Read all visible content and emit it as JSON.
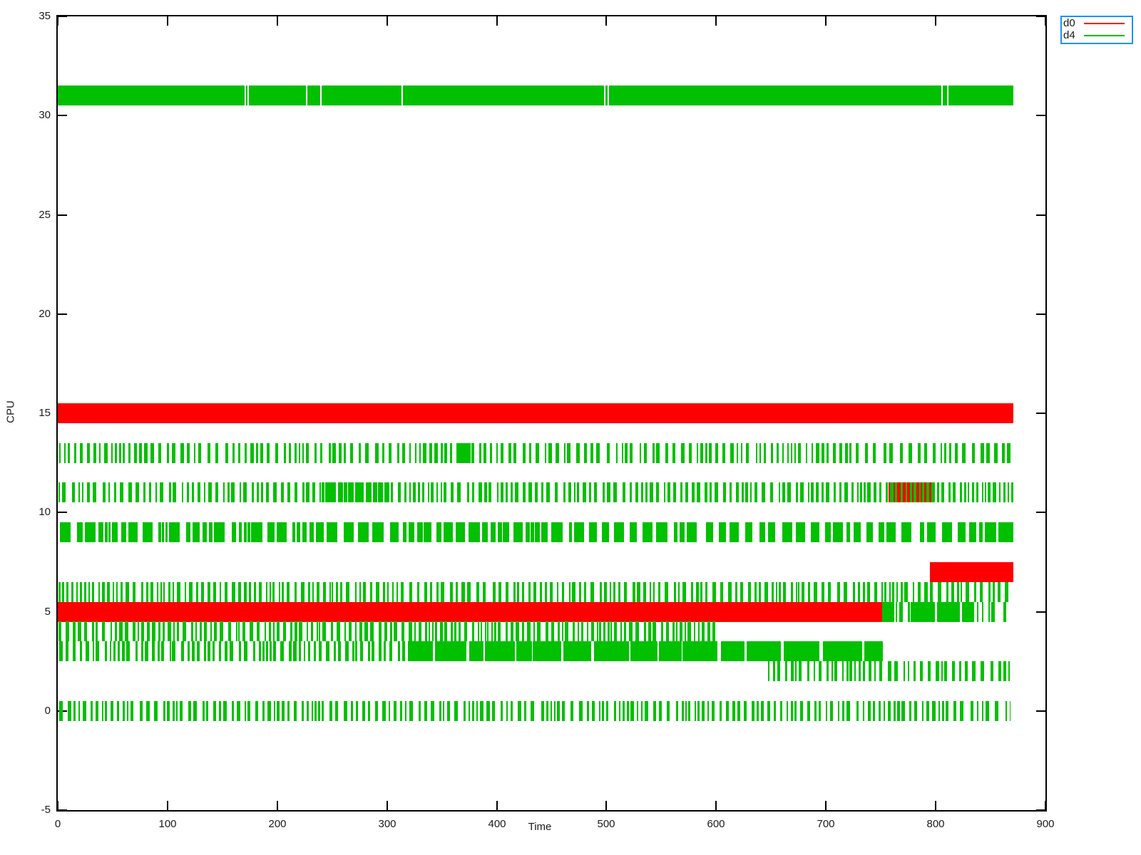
{
  "axes": {
    "x": {
      "label": "Time",
      "min": 0,
      "max": 900
    },
    "y": {
      "label": "CPU",
      "min": -5,
      "max": 35
    }
  },
  "legend": {
    "border_color": "#1e90ff",
    "entries": [
      {
        "label": "d0",
        "color": "#ff0000"
      },
      {
        "label": "d4",
        "color": "#00c000"
      }
    ]
  },
  "chart_data": {
    "type": "bar",
    "subtype": "interval-timeline-gantt",
    "title": "",
    "xlabel": "Time",
    "ylabel": "CPU",
    "xlim": [
      0,
      900
    ],
    "ylim": [
      -5,
      35
    ],
    "x_ticks": [
      0,
      100,
      200,
      300,
      400,
      500,
      600,
      700,
      800,
      900
    ],
    "y_ticks": [
      -5,
      0,
      5,
      10,
      15,
      20,
      25,
      30,
      35
    ],
    "grid": false,
    "legend_position": "outside-top-right",
    "series_colors": {
      "d0": "#ff0000",
      "d4": "#00c000"
    },
    "bar_height_units": 1,
    "time_end": 871,
    "rows": [
      {
        "cpu": 31,
        "segments": [
          {
            "start": 0,
            "end": 871,
            "style": "solid",
            "series": "d4"
          }
        ],
        "gaps": [
          170,
          173,
          226,
          239,
          313,
          498,
          501,
          805,
          810
        ]
      },
      {
        "cpu": 15,
        "segments": [
          {
            "start": 0,
            "end": 871,
            "style": "solid",
            "series": "d0"
          }
        ]
      },
      {
        "cpu": 13,
        "segments": [
          {
            "start": 0,
            "end": 364,
            "style": "stripes",
            "series": "d4",
            "density": 0.4
          },
          {
            "start": 364,
            "end": 376,
            "style": "solid",
            "series": "d4"
          },
          {
            "start": 376,
            "end": 870,
            "style": "stripes",
            "series": "d4",
            "density": 0.4
          }
        ]
      },
      {
        "cpu": 11,
        "overlays": [
          {
            "start": 757,
            "end": 796,
            "series": "d0"
          }
        ],
        "segments": [
          {
            "start": 0,
            "end": 240,
            "style": "stripes",
            "series": "d4",
            "density": 0.42
          },
          {
            "start": 240,
            "end": 302,
            "style": "dense",
            "series": "d4",
            "density": 0.8
          },
          {
            "start": 302,
            "end": 757,
            "style": "stripes",
            "series": "d4",
            "density": 0.44
          },
          {
            "start": 757,
            "end": 871,
            "style": "stripes",
            "series": "d4",
            "density": 0.46
          }
        ]
      },
      {
        "cpu": 9,
        "segments": [
          {
            "start": 0,
            "end": 430,
            "style": "dense",
            "series": "d4",
            "density": 0.7
          },
          {
            "start": 430,
            "end": 660,
            "style": "dense",
            "series": "d4",
            "density": 0.58
          },
          {
            "start": 660,
            "end": 820,
            "style": "dense",
            "series": "d4",
            "density": 0.62
          },
          {
            "start": 820,
            "end": 843,
            "style": "dense",
            "series": "d4",
            "density": 0.75
          },
          {
            "start": 845,
            "end": 855,
            "style": "solid",
            "series": "d4"
          },
          {
            "start": 857,
            "end": 871,
            "style": "solid",
            "series": "d4"
          }
        ]
      },
      {
        "cpu": 7,
        "segments": [
          {
            "start": 795,
            "end": 871,
            "style": "solid",
            "series": "d0"
          }
        ]
      },
      {
        "cpu": 6,
        "segments": [
          {
            "start": 0,
            "end": 870,
            "style": "stripes",
            "series": "d4",
            "density": 0.42
          }
        ]
      },
      {
        "cpu": 5,
        "segments": [
          {
            "start": 0,
            "end": 751,
            "style": "solid",
            "series": "d0"
          },
          {
            "start": 751,
            "end": 762,
            "style": "solid",
            "series": "d4"
          },
          {
            "start": 763,
            "end": 777,
            "style": "stripes",
            "series": "d4",
            "density": 0.45
          },
          {
            "start": 777,
            "end": 799,
            "style": "solid",
            "series": "d4"
          },
          {
            "start": 801,
            "end": 822,
            "style": "solid",
            "series": "d4"
          },
          {
            "start": 824,
            "end": 835,
            "style": "solid",
            "series": "d4"
          },
          {
            "start": 836,
            "end": 868,
            "style": "stripes",
            "series": "d4",
            "density": 0.32
          }
        ]
      },
      {
        "cpu": 4,
        "segments": [
          {
            "start": 0,
            "end": 601,
            "style": "stripes",
            "series": "d4",
            "density": 0.46
          }
        ]
      },
      {
        "cpu": 3,
        "segments": [
          {
            "start": 0,
            "end": 318,
            "style": "stripes",
            "series": "d4",
            "density": 0.46
          },
          {
            "start": 318,
            "end": 752,
            "style": "blocks",
            "series": "d4",
            "density": 0.94
          }
        ]
      },
      {
        "cpu": 2,
        "segments": [
          {
            "start": 646,
            "end": 868,
            "style": "stripes",
            "series": "d4",
            "density": 0.4
          }
        ]
      },
      {
        "cpu": 0,
        "segments": [
          {
            "start": 0,
            "end": 868,
            "style": "stripes",
            "series": "d4",
            "density": 0.42
          }
        ]
      }
    ]
  }
}
